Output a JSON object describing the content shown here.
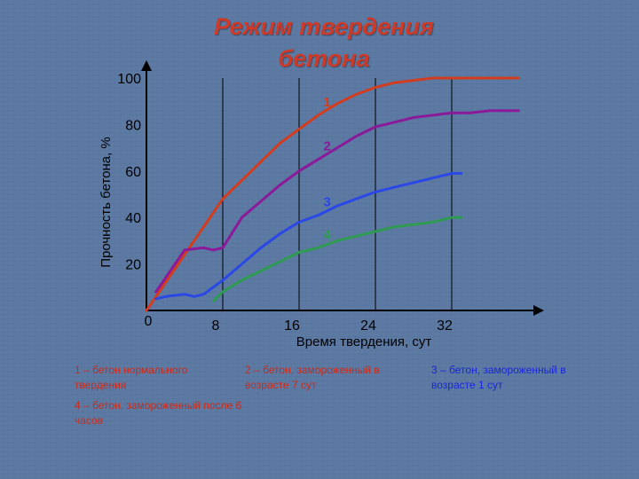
{
  "slide": {
    "title_line1": "Режим твердения",
    "title_line2": "бетона"
  },
  "chart_data": {
    "type": "line",
    "xlabel": "Время твердения, сут",
    "ylabel": "Прочность бетона, %",
    "xlim": [
      0,
      40
    ],
    "ylim": [
      0,
      100
    ],
    "x_ticks": [
      0,
      8,
      16,
      24,
      32
    ],
    "y_ticks": [
      20,
      40,
      60,
      80,
      100
    ],
    "x_tick_labels": [
      "0",
      "8",
      "16",
      "24",
      "32"
    ],
    "y_tick_labels": [
      "20",
      "40",
      "60",
      "80",
      "100"
    ],
    "grid": "vertical",
    "series": [
      {
        "name": "1",
        "color": "#d23c1f",
        "x": [
          0,
          2,
          4,
          6,
          8,
          10,
          12,
          14,
          16,
          18,
          20,
          22,
          24,
          26,
          28,
          30,
          32,
          34,
          36,
          38,
          39
        ],
        "y": [
          0,
          12,
          24,
          36,
          48,
          56,
          64,
          72,
          78,
          84,
          89,
          93,
          96,
          98,
          99,
          100,
          100,
          100,
          100,
          100,
          100
        ]
      },
      {
        "name": "2",
        "color": "#8a1a9a",
        "x": [
          1,
          2,
          4,
          6,
          7,
          8,
          10,
          12,
          14,
          16,
          18,
          20,
          22,
          24,
          26,
          28,
          30,
          32,
          34,
          36,
          38,
          39
        ],
        "y": [
          8,
          14,
          26,
          27,
          26,
          27,
          40,
          47,
          54,
          60,
          65,
          70,
          75,
          79,
          81,
          83,
          84,
          85,
          85,
          86,
          86,
          86
        ]
      },
      {
        "name": "3",
        "color": "#2a48e6",
        "x": [
          1,
          2,
          4,
          5,
          6,
          8,
          10,
          12,
          14,
          16,
          18,
          20,
          22,
          24,
          26,
          28,
          30,
          32,
          33
        ],
        "y": [
          5,
          6,
          7,
          6,
          7,
          13,
          20,
          27,
          33,
          38,
          41,
          45,
          48,
          51,
          53,
          55,
          57,
          59,
          59
        ]
      },
      {
        "name": "4",
        "color": "#2e9a52",
        "x": [
          7,
          8,
          10,
          12,
          14,
          16,
          18,
          20,
          22,
          24,
          26,
          28,
          30,
          32,
          33
        ],
        "y": [
          4,
          8,
          13,
          17,
          21,
          25,
          27,
          30,
          32,
          34,
          36,
          37,
          38,
          40,
          40
        ]
      }
    ]
  },
  "legend": {
    "l1": "1 – бетон нормального твердения",
    "l2": "2 – бетон, замороженный в возрасте 7 сут",
    "l3": "3 – бетон, замороженный в возрасте 1 сут",
    "l4": "4 – бетон, замороженный после 6 часов"
  },
  "colors": {
    "background": "#5b79a3",
    "title": "#cc3a2a",
    "axis": "#000000",
    "legend_text": "#cc2a1a",
    "legend_3": "#1a26d8"
  }
}
